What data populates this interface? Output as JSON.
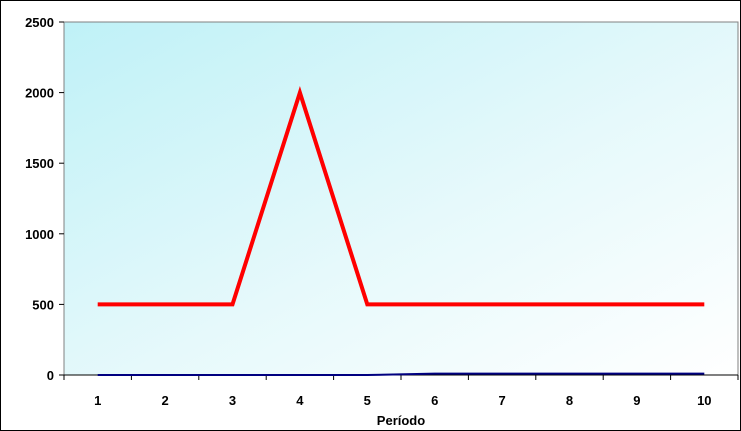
{
  "chart_data": {
    "type": "line",
    "title": "",
    "xlabel": "Período",
    "ylabel": "",
    "x": [
      1,
      2,
      3,
      4,
      5,
      6,
      7,
      8,
      9,
      10
    ],
    "xticks": [
      "1",
      "2",
      "3",
      "4",
      "5",
      "6",
      "7",
      "8",
      "9",
      "10"
    ],
    "ylim": [
      0,
      2500
    ],
    "yticks": [
      "0",
      "500",
      "1000",
      "1500",
      "2000",
      "2500"
    ],
    "grid": false,
    "legend": "none",
    "plot_background": "light cyan to white gradient",
    "series": [
      {
        "color": "#ff0000",
        "values": [
          500,
          500,
          500,
          2000,
          500,
          500,
          500,
          500,
          500,
          500
        ]
      },
      {
        "color": "#000080",
        "values": [
          0,
          0,
          0,
          0,
          0,
          10,
          10,
          10,
          10,
          10
        ]
      }
    ]
  }
}
